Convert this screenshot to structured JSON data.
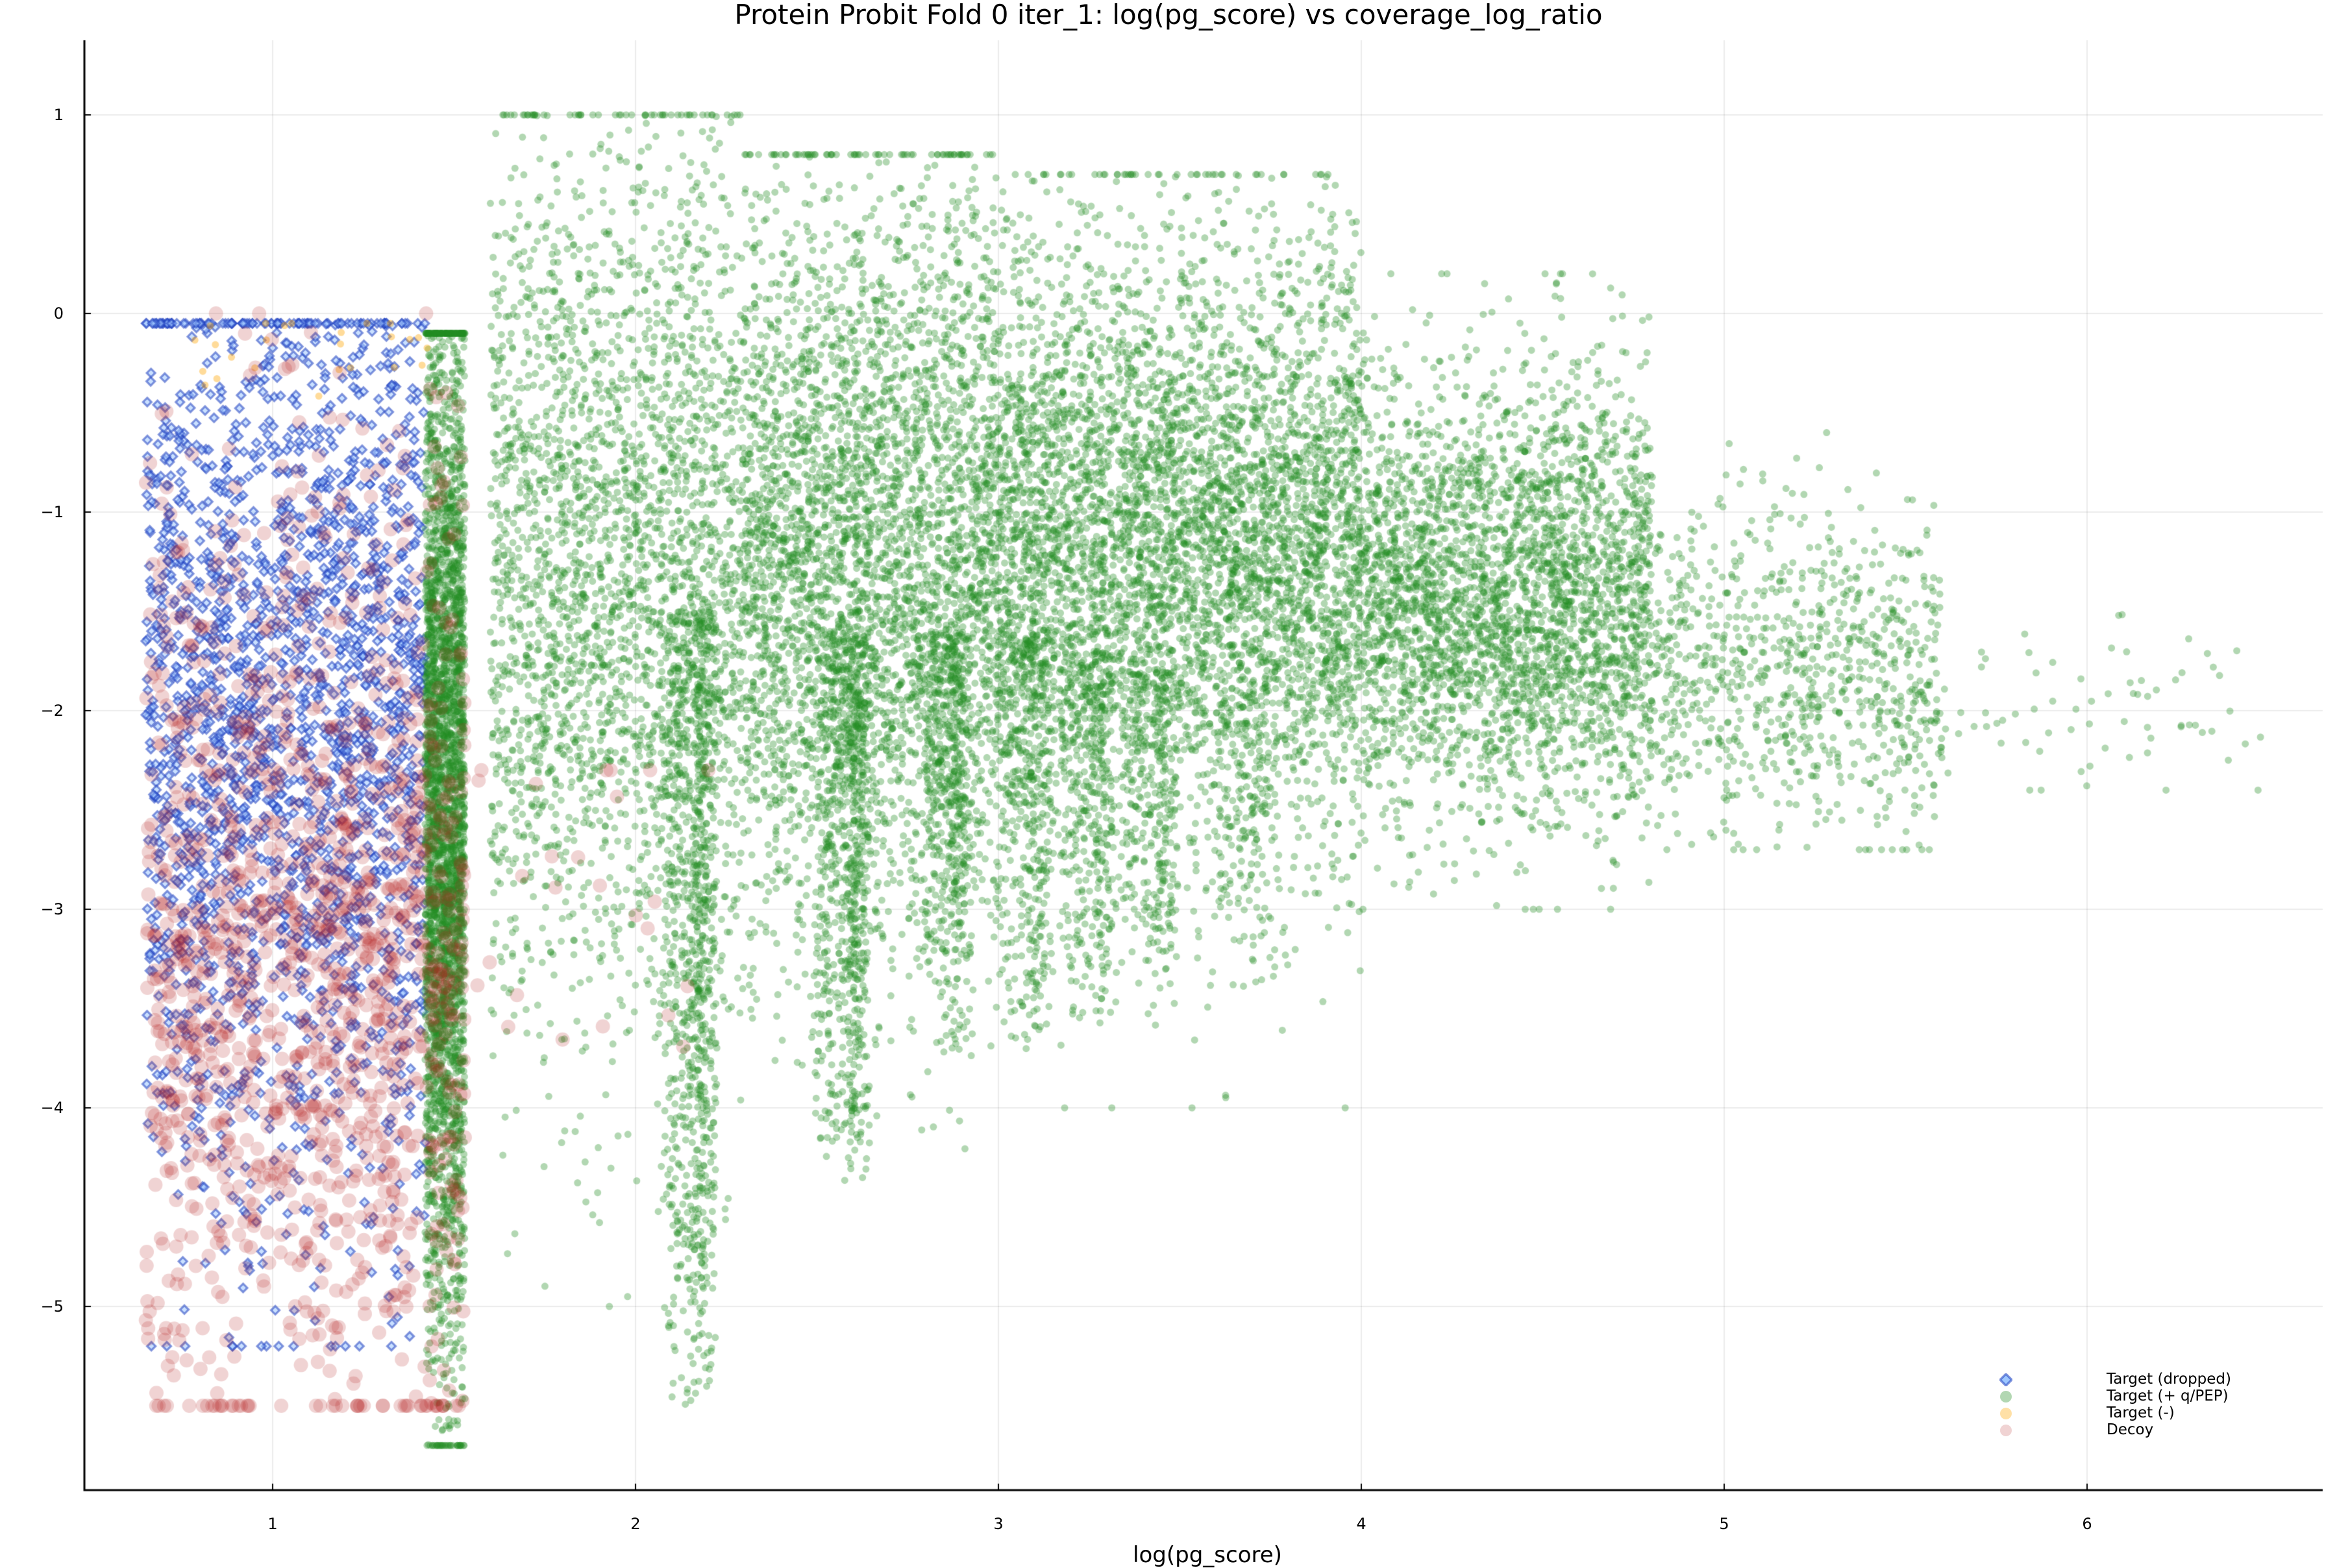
{
  "chart_data": {
    "type": "scatter",
    "title": "Protein Probit Fold 0 iter_1: log(pg_score) vs coverage_log_ratio",
    "xlabel": "log(pg_score)",
    "ylabel": "",
    "xlim": [
      0.48,
      6.65
    ],
    "ylim": [
      -5.95,
      1.38
    ],
    "grid": true,
    "legend_position": "bottom-right",
    "x_ticks": [
      1,
      2,
      3,
      4,
      5,
      6
    ],
    "y_ticks": [
      1,
      0,
      -1,
      -2,
      -3,
      -4,
      -5
    ],
    "x_tick_labels": [
      "1",
      "2",
      "3",
      "4",
      "5",
      "6"
    ],
    "y_tick_labels": [
      "1",
      "0",
      "−1",
      "−2",
      "−3",
      "−4",
      "−5"
    ],
    "series": [
      {
        "name": "Target (dropped)",
        "marker": "diamond",
        "color": "#1f3fbf",
        "fill": "#9ec7ff",
        "alpha": 0.55,
        "description": "Uniform band x 0.65–1.42, y −5.2 to −0.05, densest around y −2.5",
        "clusters": [
          {
            "x_range": [
              0.65,
              1.42
            ],
            "y_mean": -2.0,
            "y_sd": 1.2,
            "y_range": [
              -5.2,
              -0.05
            ],
            "n": 2200
          }
        ]
      },
      {
        "name": "Target (+ q/PEP)",
        "marker": "circle",
        "color": "#228b22",
        "alpha": 0.35,
        "description": "Dense column at x≈1.5 (y −5.7 to −0.1), broad cloud x 1.6–6.5 centred near y −1.3, vertical streaks at x≈2.2, 2.6, 2.9, 3.1, 3.3, 3.5",
        "clusters": [
          {
            "x_range": [
              1.42,
              1.53
            ],
            "y_mean": -2.6,
            "y_sd": 1.3,
            "y_range": [
              -5.7,
              -0.1
            ],
            "n": 3500
          },
          {
            "x_range": [
              1.6,
              2.3
            ],
            "y_mean": -1.3,
            "y_sd": 1.1,
            "y_range": [
              -5.0,
              1.0
            ],
            "n": 2800
          },
          {
            "x_range": [
              2.3,
              3.0
            ],
            "y_mean": -1.25,
            "y_sd": 0.95,
            "y_range": [
              -4.5,
              0.8
            ],
            "n": 3800
          },
          {
            "x_range": [
              3.0,
              4.0
            ],
            "y_mean": -1.2,
            "y_sd": 0.8,
            "y_range": [
              -4.0,
              0.7
            ],
            "n": 5200
          },
          {
            "x_range": [
              4.0,
              4.8
            ],
            "y_mean": -1.45,
            "y_sd": 0.55,
            "y_range": [
              -3.0,
              0.2
            ],
            "n": 3200
          },
          {
            "x_range": [
              4.8,
              5.6
            ],
            "y_mean": -1.8,
            "y_sd": 0.4,
            "y_range": [
              -2.7,
              -0.6
            ],
            "n": 900
          },
          {
            "x_range": [
              5.6,
              6.5
            ],
            "y_mean": -1.95,
            "y_sd": 0.25,
            "y_range": [
              -2.4,
              -1.5
            ],
            "n": 70
          }
        ],
        "streaks": [
          {
            "x": 2.2,
            "y_range": [
              -5.5,
              -1.5
            ],
            "n": 900
          },
          {
            "x": 2.62,
            "y_range": [
              -4.4,
              -1.6
            ],
            "n": 700
          },
          {
            "x": 2.9,
            "y_range": [
              -3.7,
              -1.6
            ],
            "n": 450
          },
          {
            "x": 3.12,
            "y_range": [
              -3.7,
              -1.6
            ],
            "n": 350
          },
          {
            "x": 3.3,
            "y_range": [
              -3.6,
              -1.7
            ],
            "n": 300
          },
          {
            "x": 3.47,
            "y_range": [
              -3.4,
              -1.8
            ],
            "n": 250
          },
          {
            "x": 3.72,
            "y_range": [
              -3.4,
              -1.9
            ],
            "n": 120
          }
        ]
      },
      {
        "name": "Target (-)",
        "marker": "circle",
        "color": "#ffa500",
        "alpha": 0.4,
        "description": "Sparse points mixed into left band x 0.7–1.4, y −0.4 to −0.05",
        "clusters": [
          {
            "x_range": [
              0.7,
              1.45
            ],
            "y_mean": -0.2,
            "y_sd": 0.12,
            "y_range": [
              -0.45,
              -0.05
            ],
            "n": 25
          }
        ]
      },
      {
        "name": "Decoy",
        "marker": "circle",
        "color": "#b22222",
        "alpha": 0.2,
        "description": "Larger circles x 0.65–1.53, y −5.5 to −0.0, densest y −3 to −4.5; few outliers up to x≈2.2",
        "clusters": [
          {
            "x_range": [
              0.65,
              1.53
            ],
            "y_mean": -3.2,
            "y_sd": 1.2,
            "y_range": [
              -5.5,
              0.0
            ],
            "n": 1500
          },
          {
            "x_range": [
              1.53,
              2.25
            ],
            "y_mean": -2.9,
            "y_sd": 0.5,
            "y_range": [
              -3.8,
              -2.3
            ],
            "n": 25
          }
        ]
      }
    ]
  },
  "legend": {
    "items": [
      {
        "label": "Target (dropped)"
      },
      {
        "label": "Target (+ q/PEP)"
      },
      {
        "label": "Target (-)"
      },
      {
        "label": "Decoy"
      }
    ]
  }
}
